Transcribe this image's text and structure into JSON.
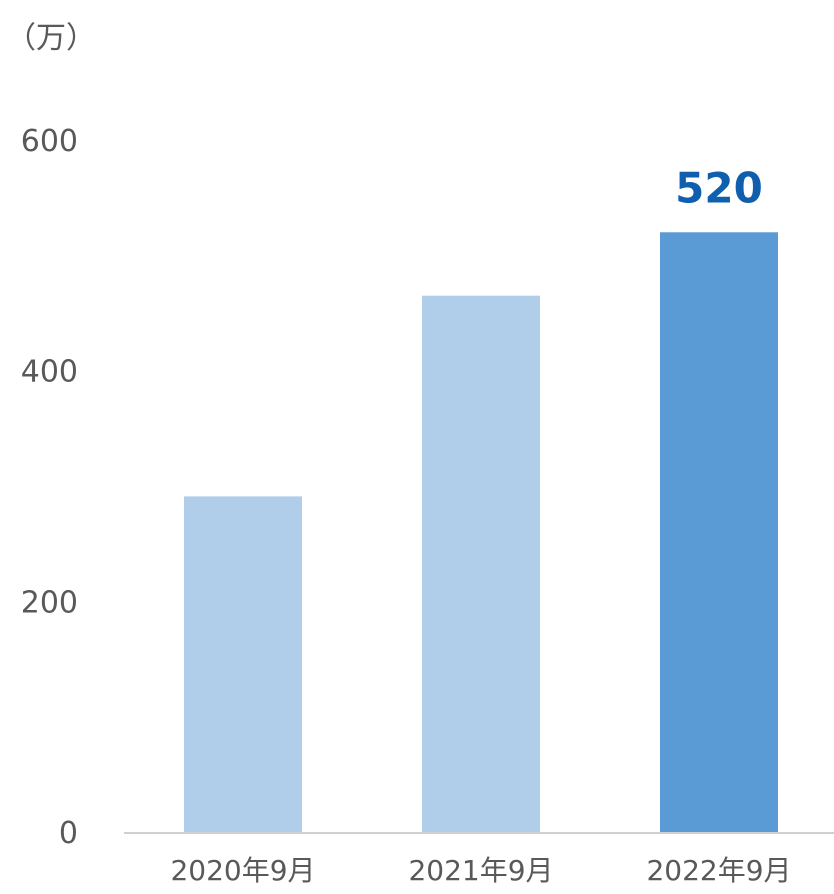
{
  "chart_data": {
    "type": "bar",
    "unit_label": "（万）",
    "categories": [
      "2020年9月",
      "2021年9月",
      "2022年9月"
    ],
    "values": [
      291,
      465,
      520
    ],
    "data_labels": [
      "",
      "",
      "520"
    ],
    "ylim": [
      0,
      600
    ],
    "yticks": [
      0,
      200,
      400,
      600
    ],
    "grid": false,
    "legend": "none",
    "colors": {
      "bar": "#b0cdea",
      "highlight_bar": "#5b9bd5",
      "data_label": "#0f5fae",
      "axis": "#d0d0d0",
      "text": "#595959"
    },
    "highlight_index": 2
  }
}
